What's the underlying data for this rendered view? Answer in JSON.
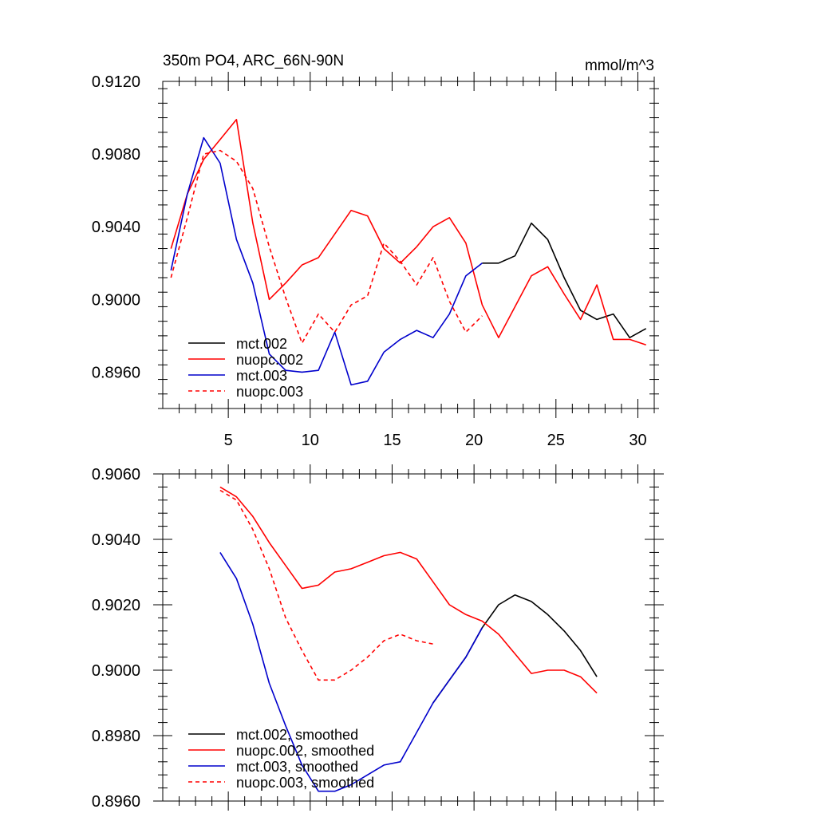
{
  "chart_data": [
    {
      "type": "line",
      "title": "350m PO4, ARC_66N-90N",
      "units": "mmol/m^3",
      "xlim": [
        1,
        31
      ],
      "ylim": [
        0.894,
        0.912
      ],
      "x_ticks": [
        5,
        10,
        15,
        20,
        25,
        30
      ],
      "y_ticks": [
        "0.8960",
        "0.9000",
        "0.9040",
        "0.9080",
        "0.9120"
      ],
      "legend_position": "bottom-left",
      "series": [
        {
          "name": "mct.002",
          "color": "#000000",
          "dash": "solid",
          "x": [
            20.5,
            21.5,
            22.5,
            23.5,
            24.5,
            25.5,
            26.5,
            27.5,
            28.5,
            29.5,
            30.5
          ],
          "y": [
            0.902,
            0.902,
            0.9024,
            0.9042,
            0.9033,
            0.9012,
            0.8994,
            0.8989,
            0.8992,
            0.8979,
            0.8984
          ]
        },
        {
          "name": "nuopc.002",
          "color": "#ff0000",
          "dash": "solid",
          "x": [
            1.5,
            2.5,
            3.5,
            4.5,
            5.5,
            6.5,
            7.5,
            8.5,
            9.5,
            10.5,
            11.5,
            12.5,
            13.5,
            14.5,
            15.5,
            16.5,
            17.5,
            18.5,
            19.5,
            20.5,
            21.5,
            22.5,
            23.5,
            24.5,
            25.5,
            26.5,
            27.5,
            28.5,
            29.5,
            30.5
          ],
          "y": [
            0.9028,
            0.9058,
            0.9077,
            0.9088,
            0.9099,
            0.9042,
            0.9,
            0.9009,
            0.9019,
            0.9023,
            0.9036,
            0.9049,
            0.9046,
            0.9028,
            0.902,
            0.9029,
            0.904,
            0.9045,
            0.9031,
            0.8997,
            0.8979,
            0.8996,
            0.9013,
            0.9018,
            0.9003,
            0.8989,
            0.9008,
            0.8978,
            0.8978,
            0.8975
          ]
        },
        {
          "name": "mct.003",
          "color": "#0000cc",
          "dash": "solid",
          "x": [
            1.5,
            2.5,
            3.5,
            4.5,
            5.5,
            6.5,
            7.5,
            8.5,
            9.5,
            10.5,
            11.5,
            12.5,
            13.5,
            14.5,
            15.5,
            16.5,
            17.5,
            18.5,
            19.5,
            20.5
          ],
          "y": [
            0.9016,
            0.9058,
            0.9089,
            0.9075,
            0.9033,
            0.9009,
            0.897,
            0.8961,
            0.896,
            0.8961,
            0.8982,
            0.8953,
            0.8955,
            0.8971,
            0.8978,
            0.8983,
            0.8979,
            0.8992,
            0.9013,
            0.902
          ]
        },
        {
          "name": "nuopc.003",
          "color": "#ff0000",
          "dash": "dashed",
          "x": [
            1.5,
            2.5,
            3.5,
            4.5,
            5.5,
            6.5,
            7.5,
            8.5,
            9.5,
            10.5,
            11.5,
            12.5,
            13.5,
            14.5,
            15.5,
            16.5,
            17.5,
            18.5,
            19.5,
            20.5
          ],
          "y": [
            0.9012,
            0.9045,
            0.908,
            0.9082,
            0.9076,
            0.9061,
            0.9029,
            0.9001,
            0.8976,
            0.8992,
            0.8982,
            0.8997,
            0.9002,
            0.9031,
            0.9021,
            0.9008,
            0.9023,
            0.8999,
            0.8982,
            0.8991
          ]
        }
      ]
    },
    {
      "type": "line",
      "xlim": [
        1,
        31
      ],
      "ylim": [
        0.896,
        0.906
      ],
      "x_ticks": [
        5,
        10,
        15,
        20,
        25,
        30
      ],
      "y_ticks": [
        "0.8960",
        "0.8980",
        "0.9000",
        "0.9020",
        "0.9040",
        "0.9060"
      ],
      "legend_position": "bottom-left",
      "series": [
        {
          "name": "mct.002, smoothed",
          "color": "#000000",
          "dash": "solid",
          "x": [
            17.5,
            18.5,
            19.5,
            20.5,
            21.5,
            22.5,
            23.5,
            24.5,
            25.5,
            26.5,
            27.5
          ],
          "y": [
            0.899,
            0.8997,
            0.9004,
            0.9013,
            0.902,
            0.9023,
            0.9021,
            0.9017,
            0.9012,
            0.9006,
            0.8998
          ]
        },
        {
          "name": "nuopc.002, smoothed",
          "color": "#ff0000",
          "dash": "solid",
          "x": [
            4.5,
            5.5,
            6.5,
            7.5,
            8.5,
            9.5,
            10.5,
            11.5,
            12.5,
            13.5,
            14.5,
            15.5,
            16.5,
            17.5,
            18.5,
            19.5,
            20.5,
            21.5,
            22.5,
            23.5,
            24.5,
            25.5,
            26.5,
            27.5
          ],
          "y": [
            0.9056,
            0.9053,
            0.9047,
            0.9039,
            0.9032,
            0.9025,
            0.9026,
            0.903,
            0.9031,
            0.9033,
            0.9035,
            0.9036,
            0.9034,
            0.9027,
            0.902,
            0.9017,
            0.9015,
            0.9011,
            0.9005,
            0.8999,
            0.9,
            0.9,
            0.8998,
            0.8993
          ]
        },
        {
          "name": "mct.003, smoothed",
          "color": "#0000cc",
          "dash": "solid",
          "x": [
            4.5,
            5.5,
            6.5,
            7.5,
            8.5,
            9.5,
            10.5,
            11.5,
            12.5,
            13.5,
            14.5,
            15.5,
            16.5,
            17.5,
            18.5,
            19.5,
            20.5
          ],
          "y": [
            0.9036,
            0.9028,
            0.9014,
            0.8996,
            0.8983,
            0.8971,
            0.8963,
            0.8963,
            0.8965,
            0.8968,
            0.8971,
            0.8972,
            0.8981,
            0.899,
            0.8997,
            0.9004,
            0.9013
          ]
        },
        {
          "name": "nuopc.003, smoothed",
          "color": "#ff0000",
          "dash": "dashed",
          "x": [
            4.5,
            5.5,
            6.5,
            7.5,
            8.5,
            9.5,
            10.5,
            11.5,
            12.5,
            13.5,
            14.5,
            15.5,
            16.5,
            17.5
          ],
          "y": [
            0.9055,
            0.9052,
            0.9043,
            0.9031,
            0.9016,
            0.9006,
            0.8997,
            0.8997,
            0.9,
            0.9004,
            0.9009,
            0.9011,
            0.9009,
            0.9008
          ]
        }
      ]
    }
  ]
}
